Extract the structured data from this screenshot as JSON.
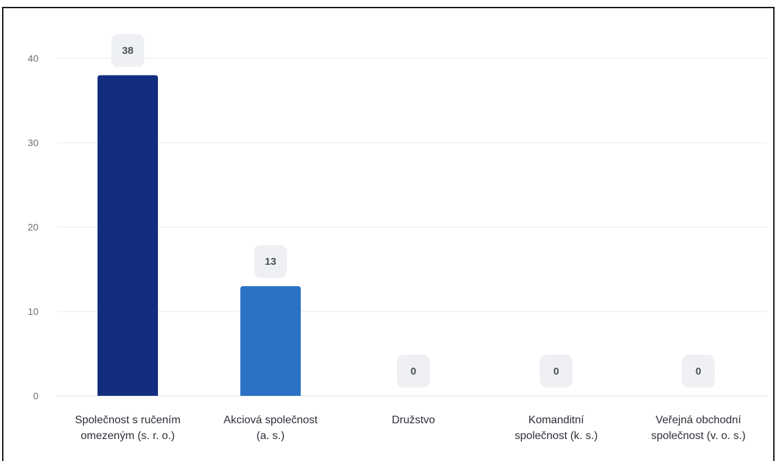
{
  "chart_data": {
    "type": "bar",
    "categories": [
      [
        "Společnost s ručením",
        "omezeným (s. r. o.)"
      ],
      [
        "Akciová společnost",
        "(a. s.)"
      ],
      [
        "Družstvo"
      ],
      [
        "Komanditní",
        "společnost (k. s.)"
      ],
      [
        "Veřejná obchodní",
        "společnost (v. o. s.)"
      ]
    ],
    "values": [
      38,
      13,
      0,
      0,
      0
    ],
    "value_labels": [
      "38",
      "13",
      "0",
      "0",
      "0"
    ],
    "yticks": [
      "0",
      "10",
      "20",
      "30",
      "40"
    ],
    "ylim": [
      0,
      40
    ],
    "grid": true,
    "legend": "none",
    "colors": [
      "#132e7e",
      "#2b72c4",
      "#2b72c4",
      "#2b72c4",
      "#2b72c4"
    ],
    "badge_color": "#eef0f3",
    "grid_color": "#e6e8eb",
    "title": "",
    "xlabel": "",
    "ylabel": ""
  }
}
